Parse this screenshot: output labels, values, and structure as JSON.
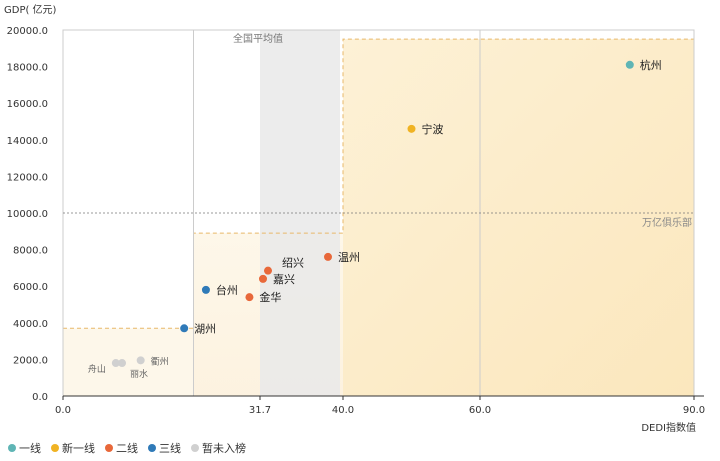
{
  "chart_data": {
    "type": "scatter",
    "title": "",
    "ylabel": "GDP( 亿元)",
    "xlabel": "DEDI指数值",
    "xlim": [
      0,
      90
    ],
    "ylim": [
      0,
      20000
    ],
    "x_ticks": [
      0,
      31.7,
      40,
      60,
      90
    ],
    "x_tick_labels": [
      "0.0",
      "31.7",
      "40.0",
      "60.0",
      "90.0"
    ],
    "y_ticks": [
      0,
      2000,
      4000,
      6000,
      8000,
      10000,
      12000,
      14000,
      16000,
      18000,
      20000
    ],
    "y_tick_labels": [
      "0.0",
      "2000.0",
      "4000.0",
      "6000.0",
      "8000.0",
      "10000.0",
      "12000.0",
      "14000.0",
      "16000.0",
      "18000.0",
      "20000.0"
    ],
    "national_average": {
      "x": 31.7,
      "label": "全国平均值"
    },
    "reference_line": {
      "y": 10000,
      "label": "万亿俱乐部"
    },
    "series": [
      {
        "name": "一线",
        "color": "#5fb5b5",
        "points": [
          {
            "x": 81,
            "y": 18100,
            "label": "杭州"
          }
        ]
      },
      {
        "name": "新一线",
        "color": "#f0b323",
        "points": [
          {
            "x": 50,
            "y": 14600,
            "label": "宁波"
          }
        ]
      },
      {
        "name": "二线",
        "color": "#e8683a",
        "points": [
          {
            "x": 38.5,
            "y": 7600,
            "label": "温州"
          },
          {
            "x": 32.5,
            "y": 6850,
            "label": "绍兴"
          },
          {
            "x": 32,
            "y": 6400,
            "label": "嘉兴"
          },
          {
            "x": 30,
            "y": 5400,
            "label": "金华"
          }
        ]
      },
      {
        "name": "三线",
        "color": "#2f7ab8",
        "points": [
          {
            "x": 23,
            "y": 5800,
            "label": "台州"
          },
          {
            "x": 19.5,
            "y": 3700,
            "label": "湖州"
          }
        ]
      },
      {
        "name": "暂未入榜",
        "color": "#d0d0d0",
        "points": [
          {
            "x": 12.5,
            "y": 1950,
            "label": "衢州"
          },
          {
            "x": 8.5,
            "y": 1800,
            "label": "舟山"
          },
          {
            "x": 9.5,
            "y": 1800,
            "label": "丽水"
          }
        ]
      }
    ]
  }
}
